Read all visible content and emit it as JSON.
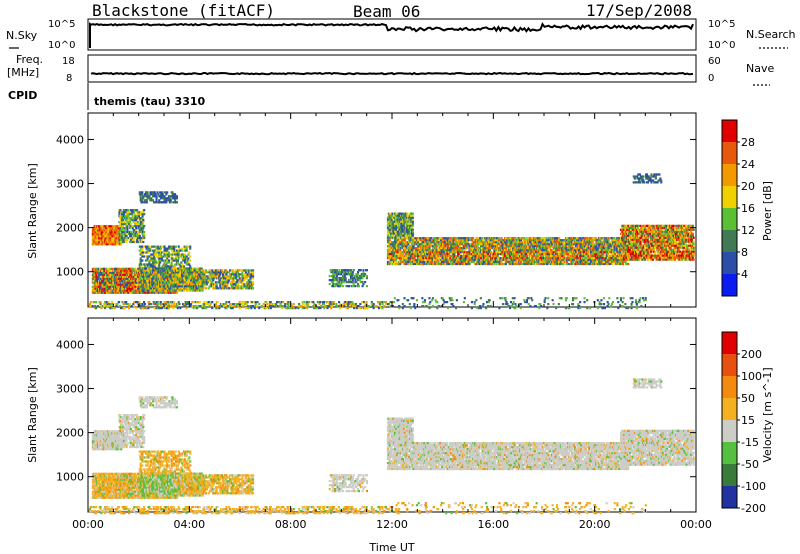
{
  "header": {
    "station": "Blackstone (fitACF)",
    "beam": "Beam 06",
    "date": "17/Sep/2008"
  },
  "strips": {
    "nsky_label": "N.Sky",
    "nsearch_label": "N.Search",
    "freq_label_1": "Freq.",
    "freq_label_2": "[MHz]",
    "nave_label": "Nave",
    "cpid_label": "CPID",
    "cpid_value": "themis (tau) 3310",
    "noise_left_top": "10^5",
    "noise_left_bottom": "10^0",
    "noise_right_top": "10^5",
    "noise_right_bottom": "10^0",
    "freq_top": "18",
    "freq_bottom": "8",
    "nave_top": "60",
    "nave_bottom": "0"
  },
  "chart_data": [
    {
      "type": "heatmap",
      "name": "Power",
      "ylabel": "Slant Range [km]",
      "ylim": [
        200,
        4600
      ],
      "y_ticks": [
        "1000",
        "2000",
        "3000",
        "4000"
      ],
      "colorbar_label": "Power [dB]",
      "colorbar_ticks": [
        "4",
        "8",
        "12",
        "16",
        "20",
        "24",
        "28"
      ],
      "colorbar_colors": [
        "#0b1cf2",
        "#2b4fa7",
        "#3f7a55",
        "#5bbf34",
        "#f0d000",
        "#f39a00",
        "#e8590c",
        "#e00000"
      ]
    },
    {
      "type": "heatmap",
      "name": "Velocity",
      "ylabel": "Slant Range [km]",
      "xlabel": "Time UT",
      "ylim": [
        200,
        4600
      ],
      "y_ticks": [
        "1000",
        "2000",
        "3000",
        "4000"
      ],
      "x_ticks": [
        "00:00",
        "04:00",
        "08:00",
        "12:00",
        "16:00",
        "20:00",
        "00:00"
      ],
      "colorbar_label": "Velocity [m s^-1]",
      "colorbar_ticks": [
        "200",
        "100",
        "50",
        "15",
        "-15",
        "-50",
        "-100",
        "-200"
      ],
      "colorbar_colors": [
        "#2033a0",
        "#3a7a3a",
        "#55c040",
        "#cdcdc8",
        "#f5b020",
        "#f58a10",
        "#e85010",
        "#e00000"
      ]
    }
  ],
  "colors": {
    "ground_scatter": "#cdcdc8",
    "background": "#ffffff"
  }
}
